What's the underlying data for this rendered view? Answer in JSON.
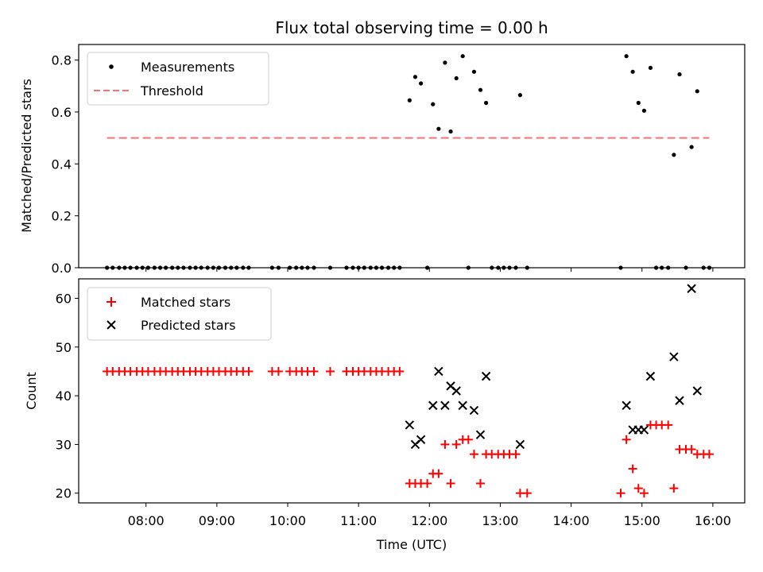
{
  "chart_data": [
    {
      "type": "scatter",
      "title": "Flux total observing time = 0.00 h",
      "ylabel": "Matched/Predicted stars",
      "xlabel": "",
      "xlim_hours": [
        7.05,
        16.45
      ],
      "ylim": [
        0,
        0.86
      ],
      "yticks": [
        0.0,
        0.2,
        0.4,
        0.6,
        0.8
      ],
      "ytick_labels": [
        "0.0",
        "0.2",
        "0.4",
        "0.6",
        "0.8"
      ],
      "legend_position": "top-left",
      "legend": [
        {
          "name": "Measurements",
          "marker": "dot",
          "color": "#000000"
        },
        {
          "name": "Threshold",
          "marker": "dashed-line",
          "color": "#ff7070"
        }
      ],
      "threshold": {
        "value": 0.5,
        "x_start": 7.45,
        "x_end": 15.95
      },
      "series": [
        {
          "name": "Measurements",
          "points": [
            [
              7.45,
              0
            ],
            [
              7.53,
              0
            ],
            [
              7.62,
              0
            ],
            [
              7.7,
              0
            ],
            [
              7.78,
              0
            ],
            [
              7.87,
              0
            ],
            [
              7.95,
              0
            ],
            [
              8.03,
              0
            ],
            [
              8.12,
              0
            ],
            [
              8.2,
              0
            ],
            [
              8.28,
              0
            ],
            [
              8.37,
              0
            ],
            [
              8.45,
              0
            ],
            [
              8.53,
              0
            ],
            [
              8.62,
              0
            ],
            [
              8.7,
              0
            ],
            [
              8.78,
              0
            ],
            [
              8.87,
              0
            ],
            [
              8.95,
              0
            ],
            [
              9.03,
              0
            ],
            [
              9.12,
              0
            ],
            [
              9.2,
              0
            ],
            [
              9.28,
              0
            ],
            [
              9.37,
              0
            ],
            [
              9.45,
              0
            ],
            [
              9.78,
              0
            ],
            [
              9.87,
              0
            ],
            [
              10.03,
              0
            ],
            [
              10.12,
              0
            ],
            [
              10.2,
              0
            ],
            [
              10.28,
              0
            ],
            [
              10.37,
              0
            ],
            [
              10.6,
              0
            ],
            [
              10.83,
              0
            ],
            [
              10.92,
              0
            ],
            [
              11.0,
              0
            ],
            [
              11.08,
              0
            ],
            [
              11.17,
              0
            ],
            [
              11.25,
              0
            ],
            [
              11.33,
              0
            ],
            [
              11.42,
              0
            ],
            [
              11.5,
              0
            ],
            [
              11.58,
              0
            ],
            [
              11.72,
              0.645
            ],
            [
              11.8,
              0.735
            ],
            [
              11.88,
              0.71
            ],
            [
              11.97,
              0
            ],
            [
              12.05,
              0.63
            ],
            [
              12.13,
              0.535
            ],
            [
              12.22,
              0.79
            ],
            [
              12.3,
              0.525
            ],
            [
              12.38,
              0.73
            ],
            [
              12.47,
              0.815
            ],
            [
              12.55,
              0
            ],
            [
              12.63,
              0.755
            ],
            [
              12.72,
              0.685
            ],
            [
              12.8,
              0.635
            ],
            [
              12.88,
              0
            ],
            [
              12.97,
              0
            ],
            [
              13.05,
              0
            ],
            [
              13.13,
              0
            ],
            [
              13.22,
              0
            ],
            [
              13.28,
              0.665
            ],
            [
              13.38,
              0
            ],
            [
              14.7,
              0
            ],
            [
              14.78,
              0.815
            ],
            [
              14.87,
              0.755
            ],
            [
              14.95,
              0.635
            ],
            [
              15.03,
              0.605
            ],
            [
              15.12,
              0.77
            ],
            [
              15.2,
              0
            ],
            [
              15.28,
              0
            ],
            [
              15.37,
              0
            ],
            [
              15.45,
              0.435
            ],
            [
              15.53,
              0.745
            ],
            [
              15.62,
              0
            ],
            [
              15.7,
              0.465
            ],
            [
              15.78,
              0.68
            ],
            [
              15.87,
              0
            ],
            [
              15.95,
              0
            ]
          ]
        }
      ]
    },
    {
      "type": "scatter",
      "title": "",
      "ylabel": "Count",
      "xlabel": "Time (UTC)",
      "xlim_hours": [
        7.05,
        16.45
      ],
      "ylim": [
        18,
        64
      ],
      "yticks": [
        20,
        30,
        40,
        50,
        60
      ],
      "ytick_labels": [
        "20",
        "30",
        "40",
        "50",
        "60"
      ],
      "xticks_hours": [
        8,
        9,
        10,
        11,
        12,
        13,
        14,
        15,
        16
      ],
      "xtick_labels": [
        "08:00",
        "09:00",
        "10:00",
        "11:00",
        "12:00",
        "13:00",
        "14:00",
        "15:00",
        "16:00"
      ],
      "legend_position": "top-left",
      "legend": [
        {
          "name": "Matched stars",
          "marker": "plus",
          "color": "#ff0000"
        },
        {
          "name": "Predicted stars",
          "marker": "x",
          "color": "#000000"
        }
      ],
      "series": [
        {
          "name": "Matched stars",
          "points": [
            [
              7.45,
              45
            ],
            [
              7.53,
              45
            ],
            [
              7.62,
              45
            ],
            [
              7.7,
              45
            ],
            [
              7.78,
              45
            ],
            [
              7.87,
              45
            ],
            [
              7.95,
              45
            ],
            [
              8.03,
              45
            ],
            [
              8.12,
              45
            ],
            [
              8.2,
              45
            ],
            [
              8.28,
              45
            ],
            [
              8.37,
              45
            ],
            [
              8.45,
              45
            ],
            [
              8.53,
              45
            ],
            [
              8.62,
              45
            ],
            [
              8.7,
              45
            ],
            [
              8.78,
              45
            ],
            [
              8.87,
              45
            ],
            [
              8.95,
              45
            ],
            [
              9.03,
              45
            ],
            [
              9.12,
              45
            ],
            [
              9.2,
              45
            ],
            [
              9.28,
              45
            ],
            [
              9.37,
              45
            ],
            [
              9.45,
              45
            ],
            [
              9.78,
              45
            ],
            [
              9.87,
              45
            ],
            [
              10.03,
              45
            ],
            [
              10.12,
              45
            ],
            [
              10.2,
              45
            ],
            [
              10.28,
              45
            ],
            [
              10.37,
              45
            ],
            [
              10.6,
              45
            ],
            [
              10.83,
              45
            ],
            [
              10.92,
              45
            ],
            [
              11.0,
              45
            ],
            [
              11.08,
              45
            ],
            [
              11.17,
              45
            ],
            [
              11.25,
              45
            ],
            [
              11.33,
              45
            ],
            [
              11.42,
              45
            ],
            [
              11.5,
              45
            ],
            [
              11.58,
              45
            ],
            [
              11.72,
              22
            ],
            [
              11.8,
              22
            ],
            [
              11.88,
              22
            ],
            [
              11.97,
              22
            ],
            [
              12.05,
              24
            ],
            [
              12.13,
              24
            ],
            [
              12.22,
              30
            ],
            [
              12.3,
              22
            ],
            [
              12.38,
              30
            ],
            [
              12.47,
              31
            ],
            [
              12.55,
              31
            ],
            [
              12.63,
              28
            ],
            [
              12.72,
              22
            ],
            [
              12.8,
              28
            ],
            [
              12.88,
              28
            ],
            [
              12.97,
              28
            ],
            [
              13.05,
              28
            ],
            [
              13.13,
              28
            ],
            [
              13.22,
              28
            ],
            [
              13.28,
              20
            ],
            [
              13.38,
              20
            ],
            [
              14.7,
              20
            ],
            [
              14.78,
              31
            ],
            [
              14.87,
              25
            ],
            [
              14.95,
              21
            ],
            [
              15.03,
              20
            ],
            [
              15.12,
              34
            ],
            [
              15.2,
              34
            ],
            [
              15.28,
              34
            ],
            [
              15.37,
              34
            ],
            [
              15.45,
              21
            ],
            [
              15.53,
              29
            ],
            [
              15.62,
              29
            ],
            [
              15.7,
              29
            ],
            [
              15.78,
              28
            ],
            [
              15.87,
              28
            ],
            [
              15.95,
              28
            ]
          ]
        },
        {
          "name": "Predicted stars",
          "points": [
            [
              11.72,
              34
            ],
            [
              11.8,
              30
            ],
            [
              11.88,
              31
            ],
            [
              12.05,
              38
            ],
            [
              12.13,
              45
            ],
            [
              12.22,
              38
            ],
            [
              12.3,
              42
            ],
            [
              12.38,
              41
            ],
            [
              12.47,
              38
            ],
            [
              12.63,
              37
            ],
            [
              12.72,
              32
            ],
            [
              12.8,
              44
            ],
            [
              13.28,
              30
            ],
            [
              14.78,
              38
            ],
            [
              14.87,
              33
            ],
            [
              14.95,
              33
            ],
            [
              15.03,
              33
            ],
            [
              15.12,
              44
            ],
            [
              15.45,
              48
            ],
            [
              15.53,
              39
            ],
            [
              15.7,
              62
            ],
            [
              15.78,
              41
            ]
          ]
        }
      ]
    }
  ]
}
